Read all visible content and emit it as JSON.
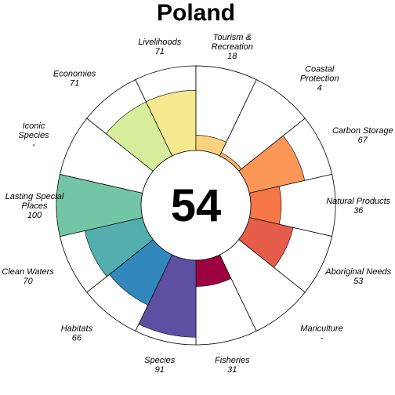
{
  "chart_data": {
    "type": "flower",
    "title": "Poland",
    "center_score": "54",
    "max_score": 100,
    "petals": [
      {
        "lines": [
          "Fisheries"
        ],
        "value": 31,
        "display": "31",
        "color": "#9e0142"
      },
      {
        "lines": [
          "Species"
        ],
        "value": 91,
        "display": "91",
        "color": "#5e4fa2"
      },
      {
        "lines": [
          "Habitats"
        ],
        "value": 66,
        "display": "66",
        "color": "#3288bd"
      },
      {
        "lines": [
          "Clean Waters"
        ],
        "value": 70,
        "display": "70",
        "color": "#54aead"
      },
      {
        "lines": [
          "Lasting Special",
          "Places"
        ],
        "value": 100,
        "display": "100",
        "color": "#73c6a5"
      },
      {
        "lines": [
          "Iconic",
          "Species"
        ],
        "value": null,
        "display": "-",
        "color": "#aadda4"
      },
      {
        "lines": [
          "Economies"
        ],
        "value": 71,
        "display": "71",
        "color": "#d6ee9b"
      },
      {
        "lines": [
          "Livelihoods"
        ],
        "value": 71,
        "display": "71",
        "color": "#f5e88f"
      },
      {
        "lines": [
          "Tourism &",
          "Recreation"
        ],
        "value": 18,
        "display": "18",
        "color": "#fdd27f"
      },
      {
        "lines": [
          "Coastal",
          "Protection"
        ],
        "value": 4,
        "display": "4",
        "color": "#fdb366"
      },
      {
        "lines": [
          "Carbon Storage"
        ],
        "value": 67,
        "display": "67",
        "color": "#fa9756"
      },
      {
        "lines": [
          "Natural Products"
        ],
        "value": 36,
        "display": "36",
        "color": "#f67648"
      },
      {
        "lines": [
          "Aboriginal Needs"
        ],
        "value": 53,
        "display": "53",
        "color": "#e65c4a"
      },
      {
        "lines": [
          "Mariculture"
        ],
        "value": null,
        "display": "-",
        "color": "#d53e4f"
      }
    ]
  }
}
